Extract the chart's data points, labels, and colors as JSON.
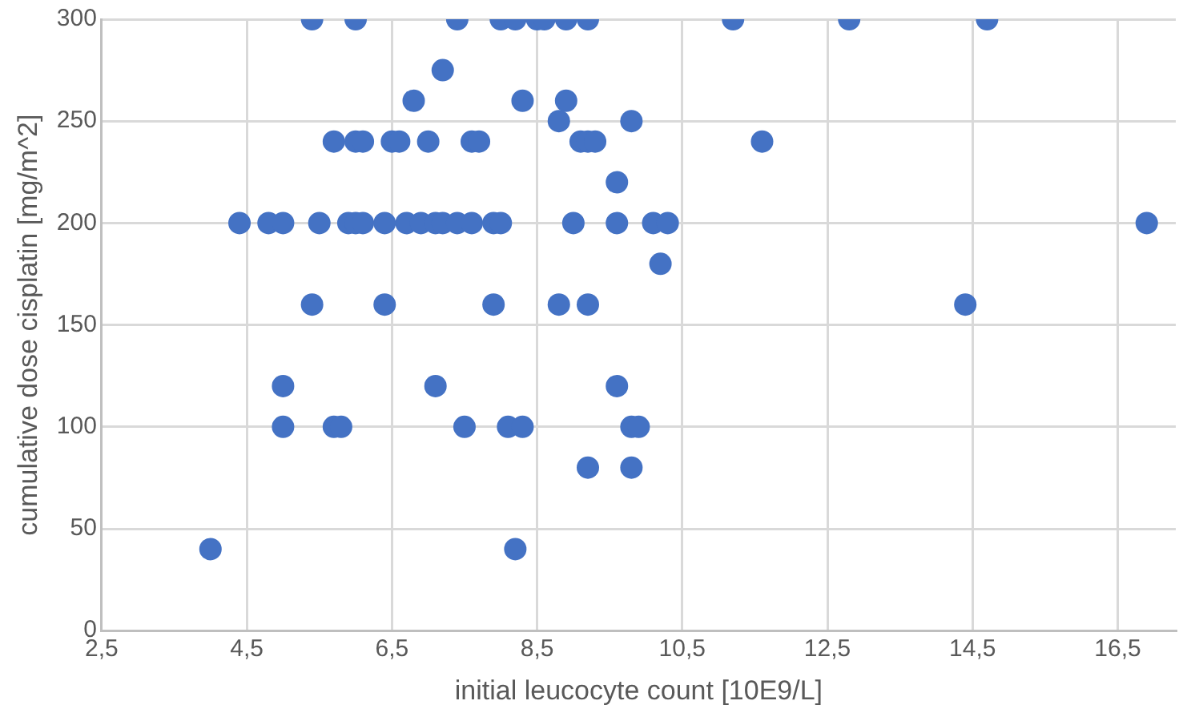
{
  "chart_data": {
    "type": "scatter",
    "xlabel": "initial leucocyte count [10E9/L]",
    "ylabel": "cumulative dose cisplatin [mg/m^2]",
    "xlim": [
      2.5,
      17.3
    ],
    "xticks": [
      {
        "value": 2.5,
        "label": "2,5"
      },
      {
        "value": 4.5,
        "label": "4,5"
      },
      {
        "value": 6.5,
        "label": "6,5"
      },
      {
        "value": 8.5,
        "label": "8,5"
      },
      {
        "value": 10.5,
        "label": "10,5"
      },
      {
        "value": 12.5,
        "label": "12,5"
      },
      {
        "value": 14.5,
        "label": "14,5"
      },
      {
        "value": 16.5,
        "label": "16,5"
      }
    ],
    "ylim": [
      0,
      300
    ],
    "yticks": [
      0,
      50,
      100,
      150,
      200,
      250,
      300
    ],
    "grid": true,
    "legend": false,
    "marker": "circle",
    "series": [
      {
        "color": "#4472c4",
        "x": [
          5.4,
          6.0,
          7.4,
          8.0,
          8.2,
          8.5,
          8.6,
          8.9,
          9.2,
          11.2,
          12.8,
          14.7,
          7.2,
          6.8,
          8.3,
          8.9,
          8.8,
          9.8,
          5.7,
          6.0,
          6.1,
          6.5,
          6.6,
          7.0,
          7.6,
          7.7,
          9.1,
          9.2,
          9.3,
          11.6,
          9.6,
          4.4,
          4.8,
          5.0,
          5.5,
          5.9,
          6.0,
          6.1,
          6.4,
          6.7,
          6.9,
          7.1,
          7.2,
          7.4,
          7.6,
          7.9,
          8.0,
          9.0,
          9.6,
          10.1,
          10.3,
          16.9,
          10.2,
          5.4,
          6.4,
          7.9,
          8.8,
          9.2,
          14.4,
          5.0,
          7.1,
          9.6,
          5.0,
          5.7,
          5.8,
          7.5,
          8.1,
          8.3,
          9.8,
          9.9,
          9.2,
          9.8,
          4.0,
          8.2
        ],
        "values": [
          300,
          300,
          300,
          300,
          300,
          300,
          300,
          300,
          300,
          300,
          300,
          300,
          275,
          260,
          260,
          260,
          250,
          250,
          240,
          240,
          240,
          240,
          240,
          240,
          240,
          240,
          240,
          240,
          240,
          240,
          220,
          200,
          200,
          200,
          200,
          200,
          200,
          200,
          200,
          200,
          200,
          200,
          200,
          200,
          200,
          200,
          200,
          200,
          200,
          200,
          200,
          200,
          180,
          160,
          160,
          160,
          160,
          160,
          160,
          120,
          120,
          120,
          100,
          100,
          100,
          100,
          100,
          100,
          100,
          100,
          80,
          80,
          40,
          40
        ]
      }
    ]
  }
}
